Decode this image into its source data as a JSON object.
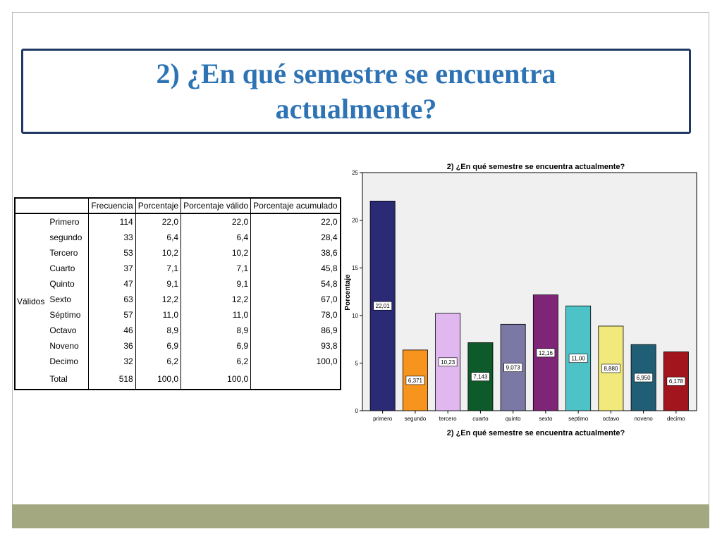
{
  "slide": {
    "title": "2) ¿En qué semestre se encuentra actualmente?"
  },
  "table": {
    "headers": [
      "",
      "Frecuencia",
      "Porcentaje",
      "Porcentaje válido",
      "Porcentaje acumulado"
    ],
    "group_label": "Válidos",
    "rows": [
      {
        "label": "Primero",
        "frecuencia": "114",
        "porcentaje": "22,0",
        "valido": "22,0",
        "acumulado": "22,0"
      },
      {
        "label": "segundo",
        "frecuencia": "33",
        "porcentaje": "6,4",
        "valido": "6,4",
        "acumulado": "28,4"
      },
      {
        "label": "Tercero",
        "frecuencia": "53",
        "porcentaje": "10,2",
        "valido": "10,2",
        "acumulado": "38,6"
      },
      {
        "label": "Cuarto",
        "frecuencia": "37",
        "porcentaje": "7,1",
        "valido": "7,1",
        "acumulado": "45,8"
      },
      {
        "label": "Quinto",
        "frecuencia": "47",
        "porcentaje": "9,1",
        "valido": "9,1",
        "acumulado": "54,8"
      },
      {
        "label": "Sexto",
        "frecuencia": "63",
        "porcentaje": "12,2",
        "valido": "12,2",
        "acumulado": "67,0"
      },
      {
        "label": "Séptimo",
        "frecuencia": "57",
        "porcentaje": "11,0",
        "valido": "11,0",
        "acumulado": "78,0"
      },
      {
        "label": "Octavo",
        "frecuencia": "46",
        "porcentaje": "8,9",
        "valido": "8,9",
        "acumulado": "86,9"
      },
      {
        "label": "Noveno",
        "frecuencia": "36",
        "porcentaje": "6,9",
        "valido": "6,9",
        "acumulado": "93,8"
      },
      {
        "label": "Decimo",
        "frecuencia": "32",
        "porcentaje": "6,2",
        "valido": "6,2",
        "acumulado": "100,0"
      }
    ],
    "total": {
      "label": "Total",
      "frecuencia": "518",
      "porcentaje": "100,0",
      "valido": "100,0",
      "acumulado": ""
    }
  },
  "chart_data": {
    "type": "bar",
    "title": "2) ¿En qué semestre se encuentra actualmente?",
    "xlabel": "2) ¿En qué semestre se encuentra actualmente?",
    "ylabel": "Porcentaje",
    "ylim": [
      0,
      25
    ],
    "yticks": [
      0,
      5,
      10,
      15,
      20,
      25
    ],
    "grid": false,
    "categories": [
      "primero",
      "segundo",
      "tercero",
      "cuarto",
      "quinto",
      "sexto",
      "septimo",
      "octavo",
      "noveno",
      "decimo"
    ],
    "values": [
      22.01,
      6.371,
      10.23,
      7.143,
      9.073,
      12.16,
      11.0,
      8.88,
      6.95,
      6.178
    ],
    "data_labels": [
      "22,01",
      "6,371",
      "10,23",
      "7,143",
      "9,073",
      "12,16",
      "11,00",
      "8,880",
      "6,950",
      "6,178"
    ],
    "colors": [
      "#2a2a75",
      "#f7941d",
      "#e0b8ef",
      "#0d5a2a",
      "#7b78a6",
      "#7e2577",
      "#4ec3c7",
      "#f2e97d",
      "#1f5e75",
      "#a3151d"
    ],
    "plot_background": "#f0f0f0"
  }
}
